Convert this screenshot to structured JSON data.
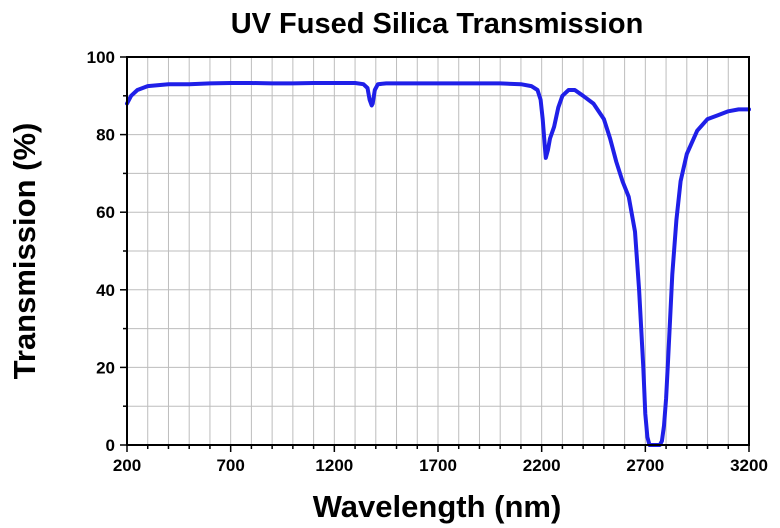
{
  "chart_data": {
    "type": "line",
    "title": "UV Fused Silica Transmission",
    "xlabel": "Wavelength (nm)",
    "ylabel": "Transmission (%)",
    "xlim": [
      200,
      3200
    ],
    "ylim": [
      0,
      100
    ],
    "x_ticks": [
      200,
      700,
      1200,
      1700,
      2200,
      2700,
      3200
    ],
    "y_ticks": [
      0,
      20,
      40,
      60,
      80,
      100
    ],
    "x_grid_step": 100,
    "y_grid_step": 10,
    "grid": true,
    "legend": "none",
    "line_color": "#1f1fe8",
    "series": [
      {
        "x": [
          200,
          220,
          250,
          300,
          400,
          500,
          600,
          700,
          800,
          900,
          1000,
          1100,
          1200,
          1300,
          1340,
          1360,
          1370,
          1380,
          1385,
          1395,
          1410,
          1450,
          1500,
          1600,
          1700,
          1800,
          1900,
          2000,
          2100,
          2150,
          2180,
          2195,
          2205,
          2215,
          2220,
          2230,
          2240,
          2260,
          2280,
          2300,
          2330,
          2360,
          2400,
          2450,
          2500,
          2530,
          2560,
          2590,
          2620,
          2650,
          2670,
          2690,
          2700,
          2710,
          2720,
          2730,
          2740,
          2750,
          2760,
          2770,
          2780,
          2790,
          2800,
          2810,
          2820,
          2830,
          2850,
          2870,
          2900,
          2950,
          3000,
          3050,
          3100,
          3150,
          3200
        ],
        "y": [
          88,
          90,
          91.5,
          92.5,
          93,
          93,
          93.2,
          93.3,
          93.3,
          93.2,
          93.2,
          93.3,
          93.3,
          93.3,
          93,
          92,
          89,
          87.5,
          88,
          91.5,
          93,
          93.2,
          93.2,
          93.2,
          93.2,
          93.2,
          93.2,
          93.2,
          93,
          92.5,
          91.5,
          89,
          84,
          77,
          74,
          76,
          79,
          82,
          87,
          90,
          91.5,
          91.5,
          90,
          88,
          84,
          79,
          73,
          68,
          64,
          55,
          40,
          20,
          8,
          2,
          0,
          0,
          0,
          0,
          0,
          0,
          1,
          5,
          12,
          22,
          33,
          44,
          58,
          68,
          75,
          81,
          84,
          85,
          86,
          86.5,
          86.5
        ]
      }
    ]
  }
}
